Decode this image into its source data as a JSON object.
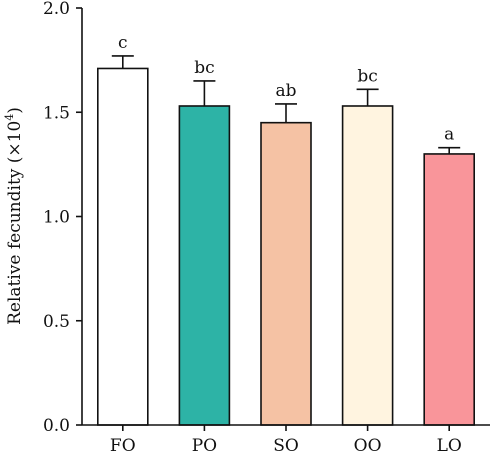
{
  "chart_data": {
    "type": "bar",
    "title": "",
    "xlabel": "",
    "ylabel": "Relative fecundity (×10",
    "ylabel_superscript": "4",
    "ylabel_suffix": ")",
    "ylim": [
      0,
      2.0
    ],
    "yticks": [
      "0.0",
      "0.5",
      "1.0",
      "1.5",
      "2.0"
    ],
    "grid": false,
    "categories": [
      "FO",
      "PO",
      "SO",
      "OO",
      "LO"
    ],
    "values": [
      1.71,
      1.53,
      1.45,
      1.53,
      1.3
    ],
    "errors": [
      0.06,
      0.12,
      0.09,
      0.08,
      0.03
    ],
    "significance": [
      "c",
      "bc",
      "ab",
      "bc",
      "a"
    ],
    "bar_colors": [
      "#ffffff",
      "#2db3a6",
      "#f5c2a4",
      "#fff4e0",
      "#f9959a"
    ]
  }
}
